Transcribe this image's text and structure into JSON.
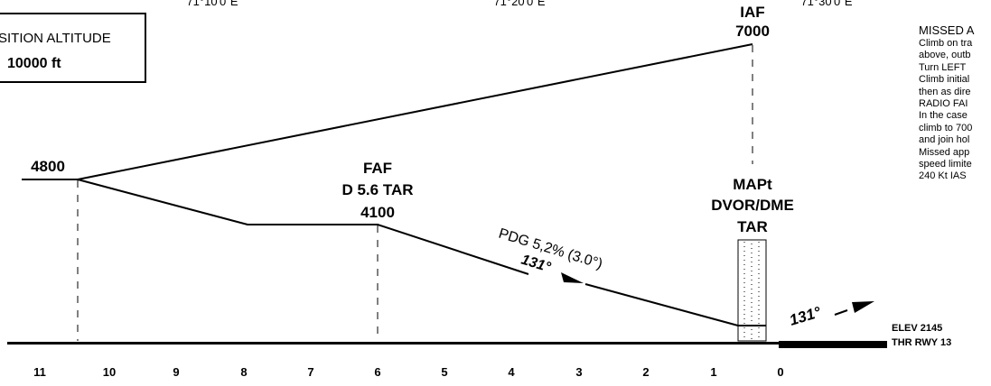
{
  "coordinates": [
    "71°10'0\"E",
    "71°20'0\"E",
    "71°30'0\"E"
  ],
  "transition": {
    "line1": "SITION ALTITUDE",
    "line2": "10000 ft"
  },
  "iaf": {
    "name": "IAF",
    "altitude": "7000"
  },
  "initial_altitude": "4800",
  "faf": {
    "name": "FAF",
    "fix": "D 5.6 TAR",
    "altitude": "4100"
  },
  "mapt": {
    "name": "MAPt",
    "nav": "DVOR/DME",
    "id": "TAR"
  },
  "descent": {
    "label": "PDG 5,2% (3.0°)",
    "course": "131°"
  },
  "missed_course": "131°",
  "missed_approach": {
    "title": "MISSED A",
    "lines": [
      "Climb on tra",
      "above, outb",
      "Turn LEFT",
      "Climb initial",
      "then as dire",
      "RADIO FAI",
      "In the case",
      "climb to 700",
      "and join hol",
      "Missed app",
      "speed limite",
      "240 Kt IAS"
    ]
  },
  "elevation": {
    "elev": "ELEV  2145",
    "threshold": "THR RWY 13"
  },
  "distance_scale": [
    "11",
    "10",
    "9",
    "8",
    "7",
    "6",
    "5",
    "4",
    "3",
    "2",
    "1",
    "0"
  ]
}
